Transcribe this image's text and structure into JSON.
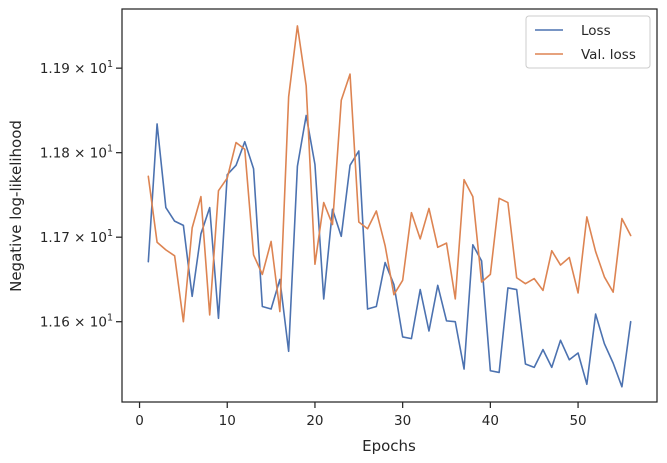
{
  "chart_data": {
    "type": "line",
    "xlabel": "Epochs",
    "ylabel": "Negative log-likelihood",
    "xlim": [
      -2.0,
      59.0
    ],
    "ylim": [
      11.505,
      11.97
    ],
    "x_ticks": [
      0,
      10,
      20,
      30,
      40,
      50
    ],
    "y_ticks": [
      {
        "value": 11.6,
        "label": "1.16 × 10"
      },
      {
        "value": 11.7,
        "label": "1.17 × 10"
      },
      {
        "value": 11.8,
        "label": "1.18 × 10"
      },
      {
        "value": 11.9,
        "label": "1.19 × 10"
      }
    ],
    "y_tick_exponent": "1",
    "grid": false,
    "legend_position": "top-right",
    "x": [
      1,
      2,
      3,
      4,
      5,
      6,
      7,
      8,
      9,
      10,
      11,
      12,
      13,
      14,
      15,
      16,
      17,
      18,
      19,
      20,
      21,
      22,
      23,
      24,
      25,
      26,
      27,
      28,
      29,
      30,
      31,
      32,
      33,
      34,
      35,
      36,
      37,
      38,
      39,
      40,
      41,
      42,
      43,
      44,
      45,
      46,
      47,
      48,
      49,
      50,
      51,
      52,
      53,
      54,
      55,
      56
    ],
    "series": [
      {
        "name": "Loss",
        "color": "#4c72b0",
        "values": [
          11.671,
          11.834,
          11.735,
          11.719,
          11.714,
          11.63,
          11.704,
          11.735,
          11.604,
          11.774,
          11.785,
          11.813,
          11.781,
          11.618,
          11.615,
          11.65,
          11.565,
          11.784,
          11.844,
          11.786,
          11.627,
          11.733,
          11.701,
          11.785,
          11.802,
          11.615,
          11.618,
          11.67,
          11.644,
          11.582,
          11.58,
          11.638,
          11.589,
          11.643,
          11.601,
          11.6,
          11.544,
          11.691,
          11.672,
          11.542,
          11.54,
          11.64,
          11.638,
          11.55,
          11.546,
          11.567,
          11.546,
          11.578,
          11.555,
          11.563,
          11.526,
          11.609,
          11.574,
          11.551,
          11.523,
          11.6
        ]
      },
      {
        "name": "Val. loss",
        "color": "#dd8452",
        "values": [
          11.772,
          11.694,
          11.685,
          11.678,
          11.6,
          11.711,
          11.748,
          11.608,
          11.755,
          11.77,
          11.812,
          11.804,
          11.679,
          11.656,
          11.695,
          11.612,
          11.866,
          11.95,
          11.879,
          11.668,
          11.741,
          11.715,
          11.862,
          11.893,
          11.718,
          11.71,
          11.731,
          11.69,
          11.632,
          11.649,
          11.729,
          11.698,
          11.734,
          11.688,
          11.693,
          11.627,
          11.768,
          11.748,
          11.647,
          11.656,
          11.746,
          11.741,
          11.652,
          11.645,
          11.651,
          11.637,
          11.684,
          11.667,
          11.676,
          11.634,
          11.724,
          11.683,
          11.653,
          11.635,
          11.722,
          11.702
        ]
      }
    ]
  }
}
